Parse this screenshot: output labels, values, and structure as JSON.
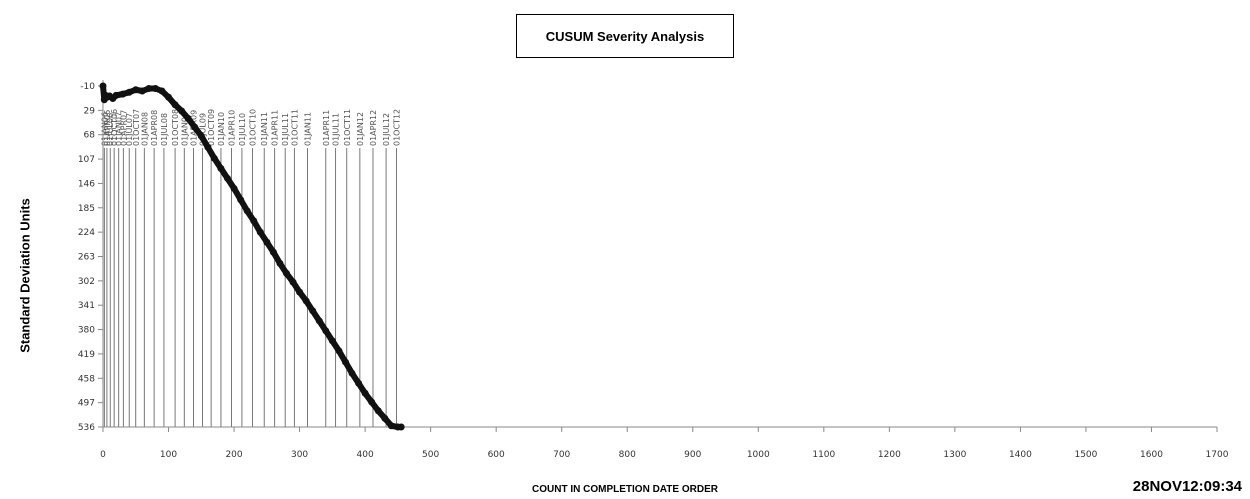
{
  "chart_data": {
    "type": "line",
    "title": "CUSUM Severity Analysis",
    "xlabel": "COUNT IN COMPLETION DATE ORDER",
    "ylabel": "Standard Deviation Units",
    "timestamp": "28NOV12:09:34",
    "xlim": [
      0,
      1700
    ],
    "ylim": [
      -10,
      536
    ],
    "x_ticks": [
      0,
      100,
      200,
      300,
      400,
      500,
      600,
      700,
      800,
      900,
      1000,
      1100,
      1200,
      1300,
      1400,
      1500,
      1600,
      1700
    ],
    "y_ticks": [
      -10,
      29,
      68,
      107,
      146,
      185,
      224,
      263,
      302,
      341,
      380,
      419,
      458,
      497,
      536
    ],
    "y_inverted": true,
    "date_markers": [
      {
        "x": 2,
        "label": "01JAN06"
      },
      {
        "x": 6,
        "label": "01APR06"
      },
      {
        "x": 11,
        "label": "01JUL06"
      },
      {
        "x": 17,
        "label": "01OCT06"
      },
      {
        "x": 24,
        "label": "01JAN07"
      },
      {
        "x": 31,
        "label": "01APR07"
      },
      {
        "x": 40,
        "label": "01JUL07"
      },
      {
        "x": 50,
        "label": "01OCT07"
      },
      {
        "x": 63,
        "label": "01JAN08"
      },
      {
        "x": 78,
        "label": "01APR08"
      },
      {
        "x": 93,
        "label": "01JUL08"
      },
      {
        "x": 110,
        "label": "01OCT08"
      },
      {
        "x": 124,
        "label": "01JAN09"
      },
      {
        "x": 138,
        "label": "01APR09"
      },
      {
        "x": 152,
        "label": "01JUL09"
      },
      {
        "x": 165,
        "label": "01OCT09"
      },
      {
        "x": 180,
        "label": "01JAN10"
      },
      {
        "x": 196,
        "label": "01APR10"
      },
      {
        "x": 212,
        "label": "01JUL10"
      },
      {
        "x": 228,
        "label": "01OCT10"
      },
      {
        "x": 246,
        "label": "01JAN11"
      },
      {
        "x": 262,
        "label": "01APR11"
      },
      {
        "x": 278,
        "label": "01JUL11"
      },
      {
        "x": 292,
        "label": "01OCT11"
      },
      {
        "x": 312,
        "label": "01JAN11"
      },
      {
        "x": 340,
        "label": "01APR11"
      },
      {
        "x": 355,
        "label": "01JUL11"
      },
      {
        "x": 372,
        "label": "01OCT11"
      },
      {
        "x": 392,
        "label": "01JAN12"
      },
      {
        "x": 412,
        "label": "01APR12"
      },
      {
        "x": 432,
        "label": "01JUL12"
      },
      {
        "x": 448,
        "label": "01OCT12"
      }
    ],
    "series": [
      {
        "x": [
          0,
          2,
          4,
          6,
          10,
          15,
          20,
          30,
          40,
          50,
          60,
          70,
          80,
          90,
          100,
          110,
          120,
          130,
          140,
          150,
          160,
          170,
          180,
          190,
          200,
          210,
          220,
          230,
          240,
          250,
          260,
          270,
          280,
          290,
          300,
          310,
          320,
          330,
          340,
          350,
          360,
          370,
          380,
          390,
          400,
          410,
          420,
          430,
          440,
          450,
          455
        ],
        "y": [
          -10,
          12,
          5,
          8,
          6,
          10,
          5,
          3,
          0,
          -4,
          -2,
          -6,
          -6,
          -2,
          8,
          20,
          30,
          42,
          56,
          70,
          88,
          106,
          122,
          138,
          154,
          172,
          190,
          206,
          224,
          240,
          256,
          274,
          290,
          304,
          320,
          334,
          350,
          366,
          382,
          398,
          414,
          432,
          450,
          466,
          482,
          496,
          510,
          522,
          534,
          536,
          536
        ]
      }
    ],
    "colors": {
      "line": "#111111",
      "gridline": "#555555",
      "axis": "#888888"
    }
  }
}
